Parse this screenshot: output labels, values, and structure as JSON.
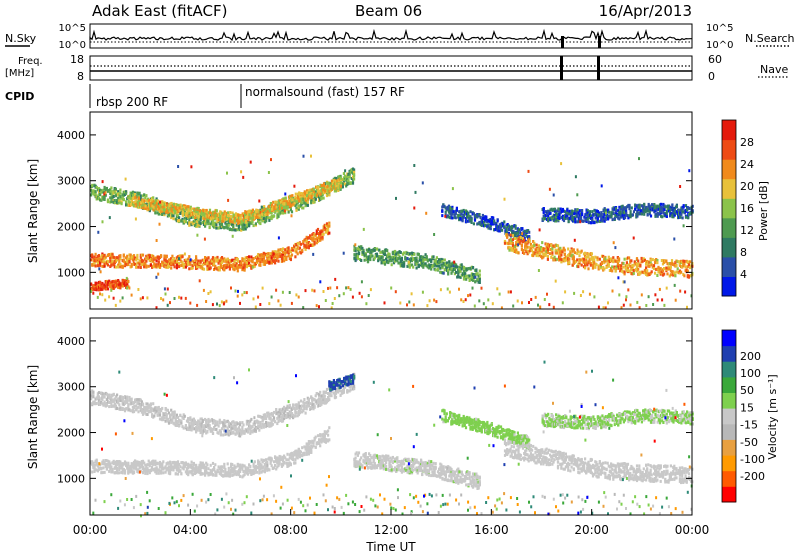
{
  "header": {
    "station": "Adak East (fitACF)",
    "beam": "Beam 06",
    "date": "16/Apr/2013"
  },
  "params": {
    "nsky_label": "N.Sky",
    "nsearch_label": "N.Search",
    "nsky_ticks": [
      "10^5",
      "10^0"
    ],
    "nsearch_ticks": [
      "10^5",
      "10^0"
    ],
    "freq_label_1": "Freq.",
    "freq_label_2": "[MHz]",
    "freq_ticks": [
      "18",
      "8"
    ],
    "nave_label": "Nave",
    "nave_ticks": [
      "60",
      "0"
    ],
    "cpid_label": "CPID",
    "modes": [
      {
        "label": "rbsp 200 RF",
        "start_hour": 0
      },
      {
        "label": "normalsound (fast) 157 RF",
        "start_hour": 5.9
      }
    ]
  },
  "colors": {
    "power_scale": [
      "#0018e8",
      "#2a4fa8",
      "#2f7a62",
      "#4e9a50",
      "#8bc34a",
      "#e8c13a",
      "#f08a1c",
      "#ee4b14",
      "#e41a0c"
    ],
    "velocity_scale": [
      "#ff0000",
      "#ff5a00",
      "#ff9a00",
      "#e8a040",
      "#b8b8b8",
      "#c8c8c8",
      "#7ed04e",
      "#3aa83a",
      "#2e8a78",
      "#1f3fb0",
      "#0000ff"
    ]
  },
  "chart_data": [
    {
      "type": "heatmap",
      "name": "power",
      "xlabel": "",
      "ylabel": "Slant Range [km]",
      "xlim": [
        0,
        24
      ],
      "ylim": [
        200,
        4500
      ],
      "yticks": [
        1000,
        2000,
        3000,
        4000
      ],
      "colorbar_label": "Power [dB]",
      "colorbar_ticks": [
        4,
        8,
        12,
        16,
        20,
        24,
        28
      ],
      "bands": [
        {
          "x": [
            0,
            4,
            6,
            8,
            9.5
          ],
          "y": [
            1300,
            1250,
            1200,
            1450,
            2000
          ],
          "w": 280,
          "v": 24
        },
        {
          "x": [
            0,
            2,
            4,
            6,
            8.5,
            10.5
          ],
          "y": [
            2800,
            2600,
            2200,
            2100,
            2600,
            3150
          ],
          "w": 320,
          "v": 14
        },
        {
          "x": [
            1.5,
            4,
            6,
            8,
            10
          ],
          "y": [
            2600,
            2350,
            2200,
            2600,
            3000
          ],
          "w": 220,
          "v": 20
        },
        {
          "x": [
            0,
            1.5
          ],
          "y": [
            720,
            800
          ],
          "w": 180,
          "v": 27
        },
        {
          "x": [
            10.5,
            13.5,
            15.5
          ],
          "y": [
            1450,
            1250,
            950
          ],
          "w": 320,
          "v": 12
        },
        {
          "x": [
            14,
            16,
            17.5
          ],
          "y": [
            2400,
            2100,
            1800
          ],
          "w": 260,
          "v": 6
        },
        {
          "x": [
            16.5,
            18.5,
            20.5,
            24
          ],
          "y": [
            1700,
            1450,
            1200,
            1100
          ],
          "w": 360,
          "v": 22
        },
        {
          "x": [
            18,
            20,
            22,
            24
          ],
          "y": [
            2300,
            2250,
            2400,
            2350
          ],
          "w": 280,
          "v": 6
        }
      ],
      "noise": {
        "ymin": 250,
        "ymax": 700,
        "v": 22
      }
    },
    {
      "type": "heatmap",
      "name": "velocity",
      "xlabel": "Time UT",
      "ylabel": "Slant Range [km]",
      "xlim": [
        0,
        24
      ],
      "xticks": [
        "00:00",
        "04:00",
        "08:00",
        "12:00",
        "16:00",
        "20:00",
        "00:00"
      ],
      "ylim": [
        200,
        4500
      ],
      "yticks": [
        1000,
        2000,
        3000,
        4000
      ],
      "colorbar_label": "Velocity [m s⁻¹]",
      "colorbar_ticks": [
        -200,
        -100,
        -50,
        -15,
        15,
        50,
        100,
        200
      ],
      "bands": [
        {
          "x": [
            0,
            4,
            6,
            8,
            9.5
          ],
          "y": [
            1300,
            1250,
            1200,
            1450,
            2000
          ],
          "w": 280,
          "v": 0
        },
        {
          "x": [
            0,
            2,
            4,
            6,
            8.5,
            10.5
          ],
          "y": [
            2800,
            2600,
            2200,
            2100,
            2600,
            3150
          ],
          "w": 320,
          "v": -10
        },
        {
          "x": [
            9.5,
            10.5
          ],
          "y": [
            3050,
            3200
          ],
          "w": 200,
          "v": 170
        },
        {
          "x": [
            10.5,
            13.5,
            15.5
          ],
          "y": [
            1450,
            1250,
            950
          ],
          "w": 320,
          "v": 5
        },
        {
          "x": [
            14,
            16,
            17.5
          ],
          "y": [
            2400,
            2100,
            1800
          ],
          "w": 260,
          "v": 40
        },
        {
          "x": [
            16.5,
            18.5,
            20.5,
            24
          ],
          "y": [
            1700,
            1450,
            1200,
            1100
          ],
          "w": 360,
          "v": 0
        },
        {
          "x": [
            18,
            20,
            22,
            24
          ],
          "y": [
            2300,
            2250,
            2400,
            2350
          ],
          "w": 280,
          "v": 30
        }
      ],
      "noise": {
        "ymin": 250,
        "ymax": 700,
        "v": 0
      }
    }
  ]
}
